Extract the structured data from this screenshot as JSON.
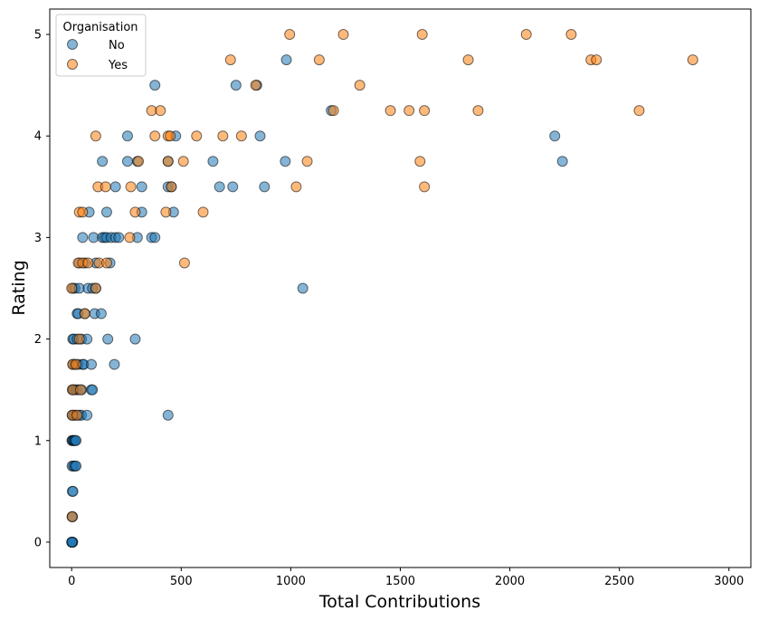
{
  "chart_data": {
    "type": "scatter",
    "title": "",
    "xlabel": "Total Contributions",
    "ylabel": "Rating",
    "xlim": [
      -100,
      3100
    ],
    "ylim": [
      -0.25,
      5.25
    ],
    "xticks": [
      0,
      500,
      1000,
      1500,
      2000,
      2500,
      3000
    ],
    "yticks": [
      0,
      1,
      2,
      3,
      4,
      5
    ],
    "grid": false,
    "legend": {
      "title": "Organisation",
      "placement": "top-left"
    },
    "series": [
      {
        "name": "No",
        "color": "#1f77b4",
        "points": [
          [
            0,
            0
          ],
          [
            2,
            0
          ],
          [
            5,
            0
          ],
          [
            3,
            0
          ],
          [
            1,
            0
          ],
          [
            2,
            0.25
          ],
          [
            4,
            0.25
          ],
          [
            3,
            0.5
          ],
          [
            6,
            0.5
          ],
          [
            2,
            0.75
          ],
          [
            8,
            0.75
          ],
          [
            15,
            0.75
          ],
          [
            20,
            0.75
          ],
          [
            1,
            1
          ],
          [
            4,
            1
          ],
          [
            8,
            1
          ],
          [
            12,
            1
          ],
          [
            16,
            1
          ],
          [
            20,
            1
          ],
          [
            2,
            1.25
          ],
          [
            10,
            1.25
          ],
          [
            20,
            1.25
          ],
          [
            35,
            1.25
          ],
          [
            45,
            1.25
          ],
          [
            70,
            1.25
          ],
          [
            440,
            1.25
          ],
          [
            3,
            1.5
          ],
          [
            10,
            1.5
          ],
          [
            20,
            1.5
          ],
          [
            30,
            1.5
          ],
          [
            45,
            1.5
          ],
          [
            90,
            1.5
          ],
          [
            95,
            1.5
          ],
          [
            5,
            1.75
          ],
          [
            15,
            1.75
          ],
          [
            30,
            1.75
          ],
          [
            50,
            1.75
          ],
          [
            55,
            1.75
          ],
          [
            90,
            1.75
          ],
          [
            195,
            1.75
          ],
          [
            5,
            2
          ],
          [
            10,
            2
          ],
          [
            25,
            2
          ],
          [
            45,
            2
          ],
          [
            70,
            2
          ],
          [
            165,
            2
          ],
          [
            290,
            2
          ],
          [
            25,
            2.25
          ],
          [
            30,
            2.25
          ],
          [
            60,
            2.25
          ],
          [
            105,
            2.25
          ],
          [
            135,
            2.25
          ],
          [
            5,
            2.5
          ],
          [
            15,
            2.5
          ],
          [
            35,
            2.5
          ],
          [
            75,
            2.5
          ],
          [
            95,
            2.5
          ],
          [
            110,
            2.5
          ],
          [
            1055,
            2.5
          ],
          [
            35,
            2.75
          ],
          [
            60,
            2.75
          ],
          [
            110,
            2.75
          ],
          [
            175,
            2.75
          ],
          [
            50,
            3
          ],
          [
            100,
            3
          ],
          [
            140,
            3
          ],
          [
            150,
            3
          ],
          [
            160,
            3
          ],
          [
            180,
            3
          ],
          [
            200,
            3
          ],
          [
            215,
            3
          ],
          [
            300,
            3
          ],
          [
            365,
            3
          ],
          [
            380,
            3
          ],
          [
            80,
            3.25
          ],
          [
            160,
            3.25
          ],
          [
            320,
            3.25
          ],
          [
            465,
            3.25
          ],
          [
            200,
            3.5
          ],
          [
            320,
            3.5
          ],
          [
            440,
            3.5
          ],
          [
            455,
            3.5
          ],
          [
            675,
            3.5
          ],
          [
            735,
            3.5
          ],
          [
            880,
            3.5
          ],
          [
            140,
            3.75
          ],
          [
            255,
            3.75
          ],
          [
            300,
            3.75
          ],
          [
            440,
            3.75
          ],
          [
            645,
            3.75
          ],
          [
            975,
            3.75
          ],
          [
            2240,
            3.75
          ],
          [
            255,
            4
          ],
          [
            475,
            4
          ],
          [
            860,
            4
          ],
          [
            2205,
            4
          ],
          [
            1185,
            4.25
          ],
          [
            380,
            4.5
          ],
          [
            750,
            4.5
          ],
          [
            845,
            4.5
          ],
          [
            980,
            4.75
          ]
        ]
      },
      {
        "name": "Yes",
        "color": "#ff7f0e",
        "points": [
          [
            2,
            0.25
          ],
          [
            3,
            1.25
          ],
          [
            25,
            1.25
          ],
          [
            5,
            1.5
          ],
          [
            40,
            1.5
          ],
          [
            5,
            1.75
          ],
          [
            20,
            1.75
          ],
          [
            35,
            2
          ],
          [
            60,
            2.25
          ],
          [
            0,
            2.5
          ],
          [
            110,
            2.5
          ],
          [
            30,
            2.75
          ],
          [
            50,
            2.75
          ],
          [
            75,
            2.75
          ],
          [
            125,
            2.75
          ],
          [
            160,
            2.75
          ],
          [
            515,
            2.75
          ],
          [
            265,
            3
          ],
          [
            35,
            3.25
          ],
          [
            50,
            3.25
          ],
          [
            290,
            3.25
          ],
          [
            430,
            3.25
          ],
          [
            600,
            3.25
          ],
          [
            120,
            3.5
          ],
          [
            155,
            3.5
          ],
          [
            270,
            3.5
          ],
          [
            455,
            3.5
          ],
          [
            1025,
            3.5
          ],
          [
            1610,
            3.5
          ],
          [
            305,
            3.75
          ],
          [
            440,
            3.75
          ],
          [
            510,
            3.75
          ],
          [
            1075,
            3.75
          ],
          [
            1590,
            3.75
          ],
          [
            110,
            4
          ],
          [
            380,
            4
          ],
          [
            440,
            4
          ],
          [
            450,
            4
          ],
          [
            570,
            4
          ],
          [
            690,
            4
          ],
          [
            775,
            4
          ],
          [
            365,
            4.25
          ],
          [
            405,
            4.25
          ],
          [
            1195,
            4.25
          ],
          [
            1455,
            4.25
          ],
          [
            1540,
            4.25
          ],
          [
            1610,
            4.25
          ],
          [
            1855,
            4.25
          ],
          [
            2590,
            4.25
          ],
          [
            840,
            4.5
          ],
          [
            1315,
            4.5
          ],
          [
            725,
            4.75
          ],
          [
            1130,
            4.75
          ],
          [
            1810,
            4.75
          ],
          [
            2370,
            4.75
          ],
          [
            2395,
            4.75
          ],
          [
            2835,
            4.75
          ],
          [
            995,
            5
          ],
          [
            1240,
            5
          ],
          [
            1600,
            5
          ],
          [
            2075,
            5
          ],
          [
            2280,
            5
          ]
        ]
      }
    ]
  }
}
